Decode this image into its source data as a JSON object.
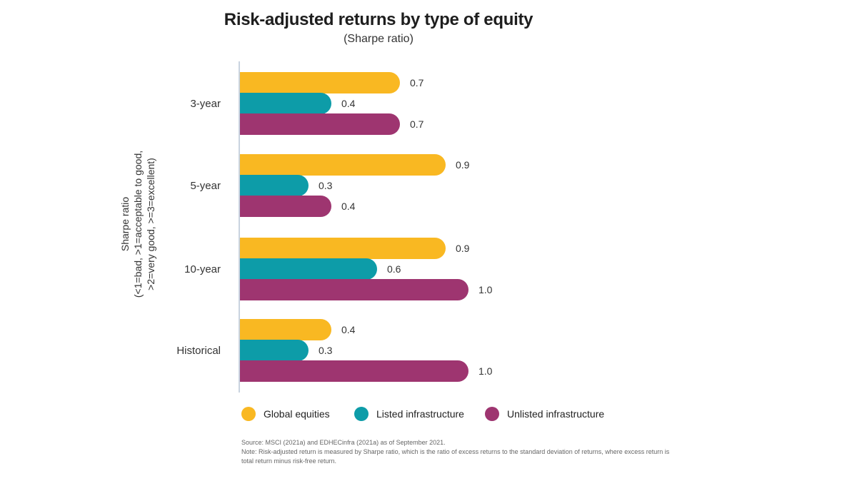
{
  "chart_data": {
    "type": "bar",
    "orientation": "horizontal",
    "title": "Risk-adjusted returns by type of equity",
    "subtitle": "(Sharpe ratio)",
    "ylabel_lines": [
      "Sharpe ratio",
      "(<1=bad, >1=acceptable to good,",
      ">2=very good, >=3=excellent)"
    ],
    "categories": [
      "3-year",
      "5-year",
      "10-year",
      "Historical"
    ],
    "series": [
      {
        "name": "Global equities",
        "color": "#F9B822",
        "values": [
          0.7,
          0.9,
          0.9,
          0.4
        ],
        "labels": [
          "0.7",
          "0.9",
          "0.9",
          "0.4"
        ]
      },
      {
        "name": "Listed infrastructure",
        "color": "#0D9CA8",
        "values": [
          0.4,
          0.3,
          0.6,
          0.3
        ],
        "labels": [
          "0.4",
          "0.3",
          "0.6",
          "0.3"
        ]
      },
      {
        "name": "Unlisted infrastructure",
        "color": "#9E3570",
        "values": [
          0.7,
          0.4,
          1.0,
          1.0
        ],
        "labels": [
          "0.7",
          "0.4",
          "1.0",
          "1.0"
        ]
      }
    ],
    "xlim": [
      0,
      1.2
    ],
    "grid": false,
    "legend_position": "bottom"
  },
  "footnotes": {
    "source": "Source: MSCI (2021a) and EDHECinfra (2021a) as of September 2021.",
    "note_line1": "Note: Risk-adjusted return is measured by Sharpe ratio, which is the ratio of excess returns to the standard deviation of returns, where excess return is",
    "note_line2": "total return minus risk-free return."
  }
}
